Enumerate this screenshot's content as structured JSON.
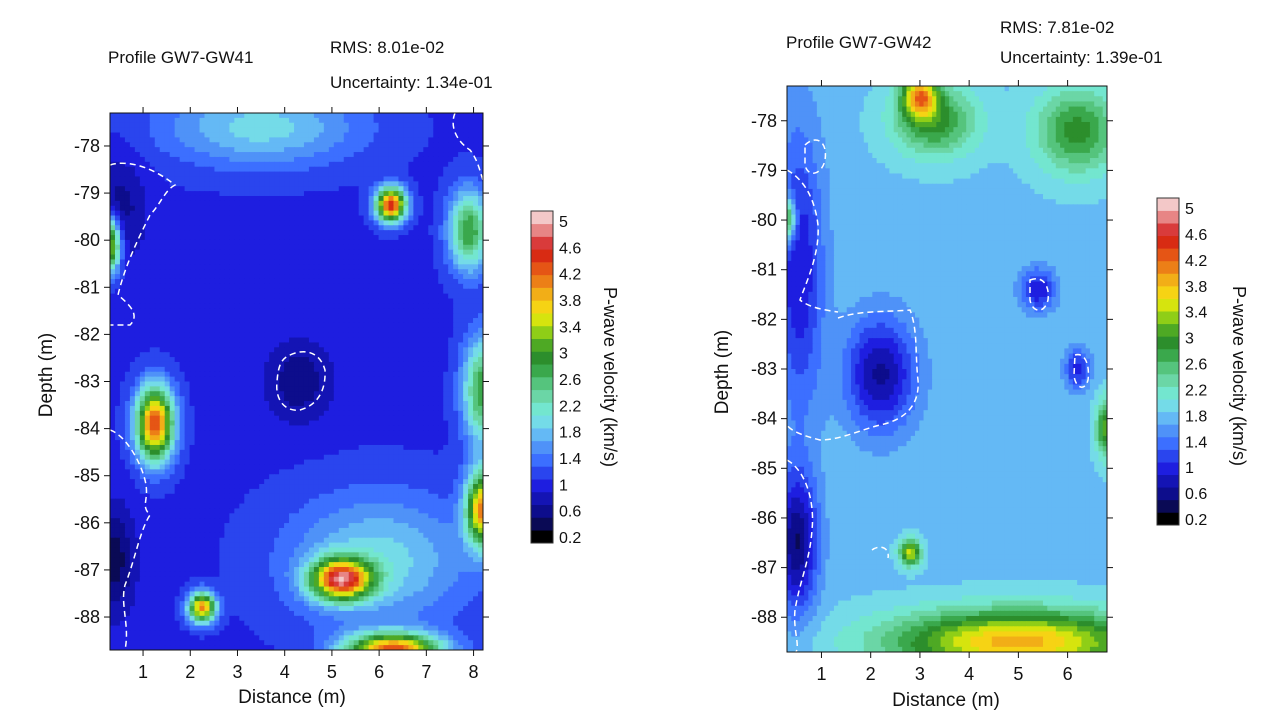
{
  "chart_data": [
    {
      "type": "heatmap",
      "title": "Profile GW7-GW41",
      "rms_label": "RMS: 8.01e-02",
      "uncertainty_label": "Uncertainty: 1.34e-01",
      "xlabel": "Distance (m)",
      "ylabel": "Depth (m)",
      "xlim": [
        0.3,
        8.2
      ],
      "ylim": [
        -88.7,
        -77.3
      ],
      "x_ticks": [
        1,
        2,
        3,
        4,
        5,
        6,
        7,
        8
      ],
      "y_ticks": [
        -78,
        -79,
        -80,
        -81,
        -82,
        -83,
        -84,
        -85,
        -86,
        -87,
        -88
      ],
      "background_velocity": 0.95,
      "anomalies": [
        {
          "x": 6.25,
          "y": -79.25,
          "sx": 0.22,
          "sy": 0.25,
          "v": 4.6
        },
        {
          "x": 1.25,
          "y": -83.9,
          "sx": 0.28,
          "sy": 0.55,
          "v": 4.4
        },
        {
          "x": 5.2,
          "y": -87.2,
          "sx": 0.45,
          "sy": 0.3,
          "v": 4.3
        },
        {
          "x": 2.25,
          "y": -87.8,
          "sx": 0.2,
          "sy": 0.22,
          "v": 4.0
        },
        {
          "x": 6.3,
          "y": -88.7,
          "sx": 0.7,
          "sy": 0.25,
          "v": 4.2
        },
        {
          "x": 8.2,
          "y": -85.7,
          "sx": 0.25,
          "sy": 0.55,
          "v": 4.0
        },
        {
          "x": 8.2,
          "y": -83.2,
          "sx": 0.3,
          "sy": 0.8,
          "v": 2.8
        },
        {
          "x": 7.9,
          "y": -79.8,
          "sx": 0.3,
          "sy": 0.6,
          "v": 2.8
        },
        {
          "x": 0.3,
          "y": -80.1,
          "sx": 0.15,
          "sy": 0.4,
          "v": 3.6
        },
        {
          "x": 4.3,
          "y": -83.0,
          "sx": 0.5,
          "sy": 0.6,
          "v": 0.45
        },
        {
          "x": 0.5,
          "y": -79.3,
          "sx": 0.4,
          "sy": 0.8,
          "v": 0.5
        },
        {
          "x": 0.4,
          "y": -86.8,
          "sx": 0.3,
          "sy": 0.8,
          "v": 0.3
        },
        {
          "x": 3.5,
          "y": -77.6,
          "sx": 1.5,
          "sy": 0.6,
          "v": 1.9
        },
        {
          "x": 6.0,
          "y": -86.8,
          "sx": 1.4,
          "sy": 1.0,
          "v": 1.9
        }
      ],
      "dashed_contours_approx": "low-velocity zones outlined with white dashed lines"
    },
    {
      "type": "heatmap",
      "title": "Profile GW7-GW42",
      "rms_label": "RMS: 7.81e-02",
      "uncertainty_label": "Uncertainty: 1.39e-01",
      "xlabel": "Distance (m)",
      "ylabel": "Depth (m)",
      "xlim": [
        0.3,
        6.8
      ],
      "ylim": [
        -88.7,
        -77.3
      ],
      "x_ticks": [
        1,
        2,
        3,
        4,
        5,
        6
      ],
      "y_ticks": [
        -78,
        -79,
        -80,
        -81,
        -82,
        -83,
        -84,
        -85,
        -86,
        -87,
        -88
      ],
      "background_velocity": 1.75,
      "anomalies": [
        {
          "x": 5.0,
          "y": -88.5,
          "sx": 1.8,
          "sy": 0.45,
          "v": 3.9
        },
        {
          "x": 3.0,
          "y": -77.5,
          "sx": 0.25,
          "sy": 0.3,
          "v": 3.7
        },
        {
          "x": 3.3,
          "y": -78.0,
          "sx": 0.6,
          "sy": 0.5,
          "v": 2.9
        },
        {
          "x": 6.2,
          "y": -78.2,
          "sx": 0.6,
          "sy": 0.6,
          "v": 2.9
        },
        {
          "x": 2.8,
          "y": -86.7,
          "sx": 0.15,
          "sy": 0.18,
          "v": 3.5
        },
        {
          "x": 6.8,
          "y": -84.2,
          "sx": 0.15,
          "sy": 0.4,
          "v": 3.2
        },
        {
          "x": 2.2,
          "y": -83.1,
          "sx": 0.5,
          "sy": 0.8,
          "v": 0.55
        },
        {
          "x": 0.55,
          "y": -81.0,
          "sx": 0.35,
          "sy": 2.0,
          "v": 0.8
        },
        {
          "x": 0.5,
          "y": -86.5,
          "sx": 0.3,
          "sy": 1.0,
          "v": 0.4
        },
        {
          "x": 5.4,
          "y": -81.4,
          "sx": 0.25,
          "sy": 0.3,
          "v": 0.8
        },
        {
          "x": 6.2,
          "y": -83.0,
          "sx": 0.18,
          "sy": 0.3,
          "v": 0.9
        },
        {
          "x": 0.3,
          "y": -80.0,
          "sx": 0.12,
          "sy": 0.3,
          "v": 3.4
        }
      ],
      "dashed_contours_approx": "low-velocity zones outlined with white dashed lines"
    }
  ],
  "colorbar": {
    "label": "P-wave velocity (km/s)",
    "tick_labels": [
      "5",
      "4.6",
      "4.2",
      "3.8",
      "3.4",
      "3",
      "2.6",
      "2.2",
      "1.8",
      "1.4",
      "1",
      "0.6",
      "0.2"
    ],
    "levels": [
      0.2,
      0.4,
      0.6,
      0.8,
      1.0,
      1.2,
      1.4,
      1.6,
      1.8,
      2.0,
      2.2,
      2.4,
      2.6,
      2.8,
      3.0,
      3.2,
      3.4,
      3.6,
      3.8,
      4.0,
      4.2,
      4.4,
      4.6,
      4.8,
      5.0
    ],
    "colors": [
      "#000000",
      "#0a0a55",
      "#0d0d8c",
      "#1414b4",
      "#1e1ee0",
      "#2a45ee",
      "#3c6fff",
      "#4f92f8",
      "#64b9f5",
      "#74dbe8",
      "#73e6cf",
      "#6bd6a6",
      "#55c47d",
      "#3aa84c",
      "#2c8e2c",
      "#4ea924",
      "#8fce17",
      "#d6e40e",
      "#f6d314",
      "#f2ae17",
      "#ec7f17",
      "#e55515",
      "#d82b13",
      "#d93b3b",
      "#e78585",
      "#f3c8c8"
    ]
  }
}
